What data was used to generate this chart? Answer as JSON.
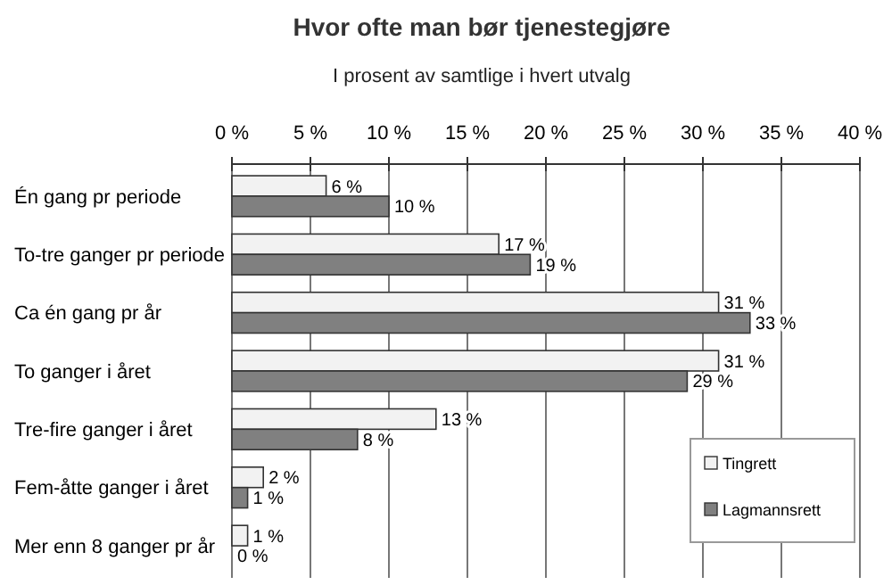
{
  "chart_data": {
    "type": "bar",
    "orientation": "horizontal",
    "title": "Hvor ofte man bør tjenestegjøre",
    "subtitle": "I prosent av samtlige i hvert utvalg",
    "categories": [
      "Én gang pr periode",
      "To-tre ganger pr periode",
      "Ca én gang pr år",
      "To ganger i året",
      "Tre-fire ganger i året",
      "Fem-åtte ganger i året",
      "Mer enn 8 ganger pr år"
    ],
    "series": [
      {
        "name": "Tingrett",
        "color": "#f2f2f2",
        "values": [
          6,
          17,
          31,
          31,
          13,
          2,
          1
        ],
        "value_labels": [
          "6 %",
          "17 %",
          "31 %",
          "31 %",
          "13 %",
          "2 %",
          "1 %"
        ]
      },
      {
        "name": "Lagmannsrett",
        "color": "#808080",
        "values": [
          10,
          19,
          33,
          29,
          8,
          1,
          0
        ],
        "value_labels": [
          "10 %",
          "19 %",
          "33 %",
          "29 %",
          "8 %",
          "1 %",
          "0 %"
        ]
      }
    ],
    "xlim": [
      0,
      40
    ],
    "xticks": [
      {
        "value": 0,
        "label": "0 %"
      },
      {
        "value": 5,
        "label": "5 %"
      },
      {
        "value": 10,
        "label": "10 %"
      },
      {
        "value": 15,
        "label": "15 %"
      },
      {
        "value": 20,
        "label": "20 %"
      },
      {
        "value": 25,
        "label": "25 %"
      },
      {
        "value": 30,
        "label": "30 %"
      },
      {
        "value": 35,
        "label": "35 %"
      },
      {
        "value": 40,
        "label": "40 %"
      }
    ],
    "grid": "x",
    "legend": "bottom right"
  }
}
